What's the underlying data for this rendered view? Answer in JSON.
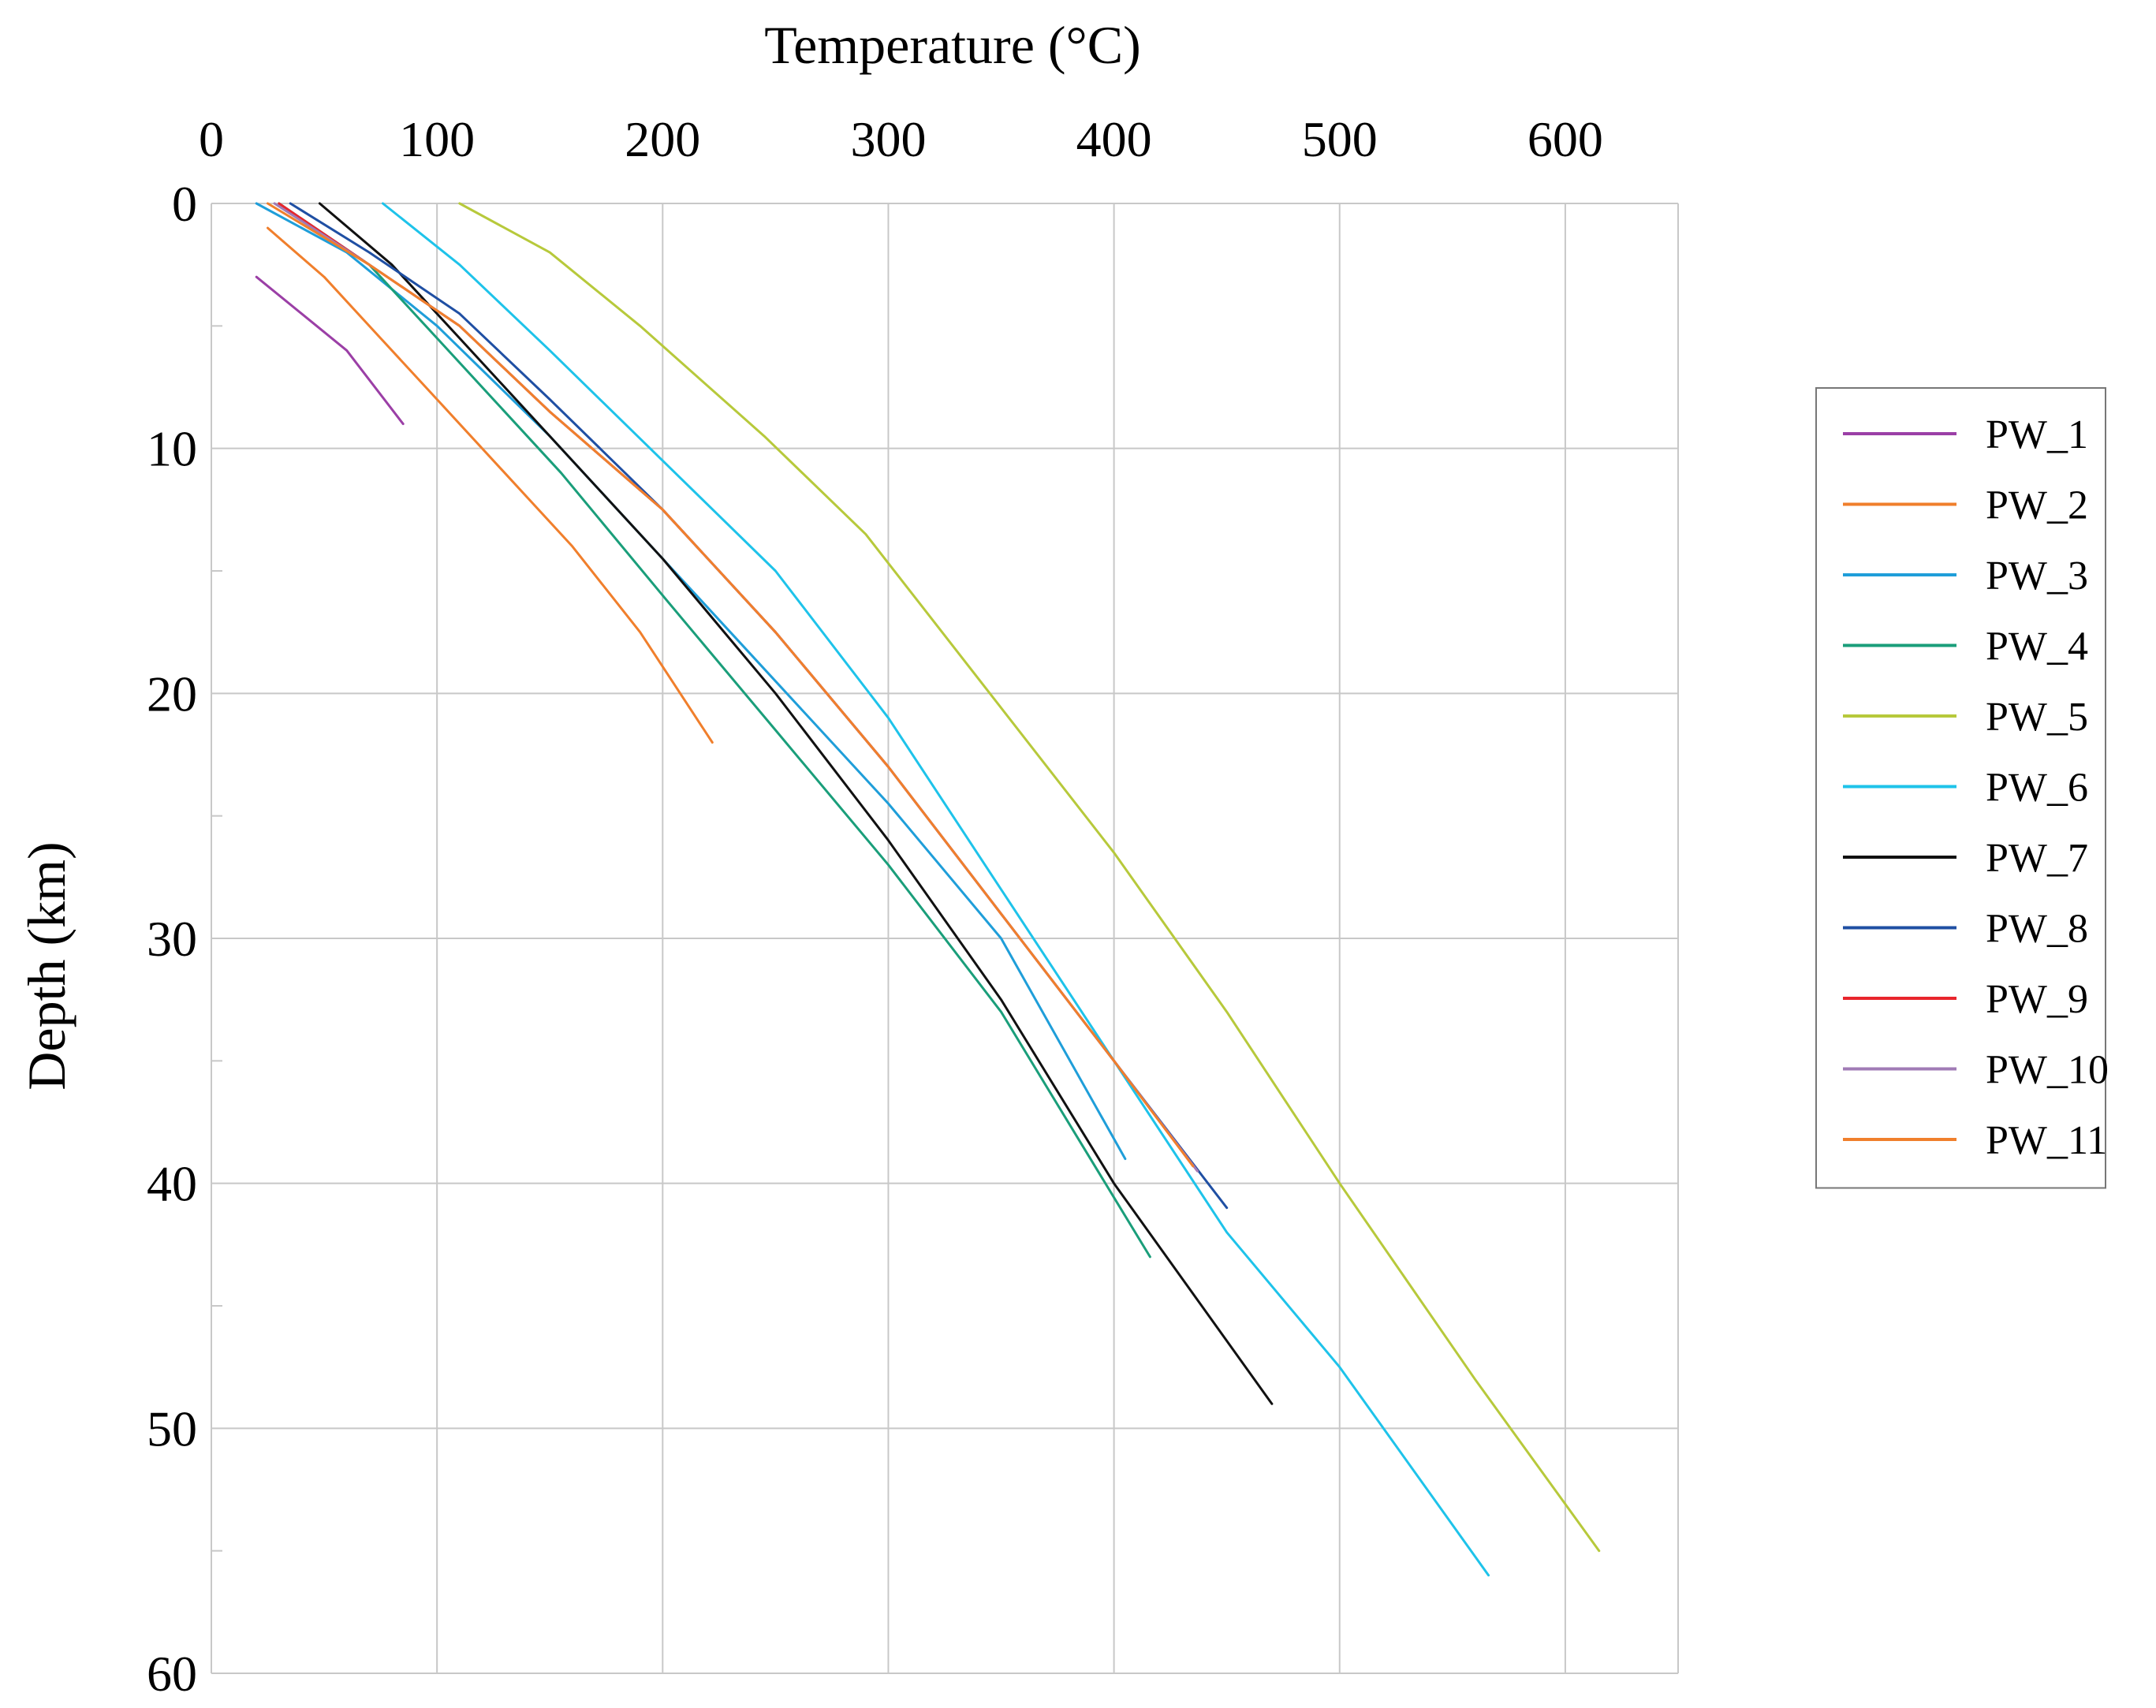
{
  "chart_data": {
    "type": "line",
    "title": "",
    "xlabel": "Temperature (°C)",
    "ylabel": "Depth (km)",
    "xlim": [
      0,
      650
    ],
    "ylim": [
      60,
      0
    ],
    "x_axis_position": "top",
    "y_axis_inverted": true,
    "x_ticks": [
      0,
      100,
      200,
      300,
      400,
      500,
      600
    ],
    "x_tick_labels": [
      "0",
      "100",
      "200",
      "300",
      "400",
      "500",
      "600"
    ],
    "y_ticks": [
      0,
      10,
      20,
      30,
      40,
      50,
      60
    ],
    "y_tick_labels": [
      "0",
      "10",
      "20",
      "30",
      "40",
      "50",
      "60"
    ],
    "y_minor_ticks": [
      5,
      15,
      25,
      35,
      45,
      55
    ],
    "grid": true,
    "legend_position": "right",
    "series": [
      {
        "name": "PW_1",
        "color": "#9b3fa6",
        "points": [
          [
            20,
            3
          ],
          [
            40,
            4.5
          ],
          [
            60,
            6
          ],
          [
            85,
            9
          ]
        ]
      },
      {
        "name": "PW_2",
        "color": "#f07f2c",
        "points": [
          [
            25,
            1
          ],
          [
            50,
            3
          ],
          [
            75,
            5.5
          ],
          [
            100,
            8
          ],
          [
            130,
            11
          ],
          [
            160,
            14
          ],
          [
            190,
            17.5
          ],
          [
            222,
            22
          ]
        ]
      },
      {
        "name": "PW_3",
        "color": "#1f9ed9",
        "points": [
          [
            20,
            0
          ],
          [
            60,
            2
          ],
          [
            100,
            5
          ],
          [
            150,
            9.5
          ],
          [
            200,
            14.5
          ],
          [
            250,
            19.5
          ],
          [
            300,
            24.5
          ],
          [
            350,
            30
          ],
          [
            405,
            39
          ]
        ]
      },
      {
        "name": "PW_4",
        "color": "#1a9e7a",
        "points": [
          [
            30,
            0
          ],
          [
            70,
            2.5
          ],
          [
            100,
            5.5
          ],
          [
            155,
            11
          ],
          [
            200,
            16
          ],
          [
            250,
            21.5
          ],
          [
            300,
            27
          ],
          [
            350,
            33
          ],
          [
            416,
            43
          ]
        ]
      },
      {
        "name": "PW_5",
        "color": "#b7c93b",
        "points": [
          [
            110,
            0
          ],
          [
            150,
            2
          ],
          [
            190,
            5
          ],
          [
            245,
            9.5
          ],
          [
            290,
            13.5
          ],
          [
            345,
            20
          ],
          [
            400,
            26.5
          ],
          [
            450,
            33
          ],
          [
            500,
            40
          ],
          [
            560,
            48
          ],
          [
            615,
            55
          ]
        ]
      },
      {
        "name": "PW_6",
        "color": "#1ec3ea",
        "points": [
          [
            76,
            0
          ],
          [
            110,
            2.5
          ],
          [
            150,
            6
          ],
          [
            200,
            10.5
          ],
          [
            250,
            15
          ],
          [
            300,
            21
          ],
          [
            350,
            28
          ],
          [
            400,
            35
          ],
          [
            450,
            42
          ],
          [
            500,
            47.5
          ],
          [
            566,
            56
          ]
        ]
      },
      {
        "name": "PW_7",
        "color": "#111111",
        "points": [
          [
            48,
            0
          ],
          [
            80,
            2.5
          ],
          [
            110,
            5.5
          ],
          [
            150,
            9.5
          ],
          [
            200,
            14.5
          ],
          [
            250,
            20
          ],
          [
            300,
            26
          ],
          [
            350,
            32.5
          ],
          [
            400,
            40
          ],
          [
            470,
            49
          ]
        ]
      },
      {
        "name": "PW_8",
        "color": "#1f4fa3",
        "points": [
          [
            35,
            0
          ],
          [
            70,
            2
          ],
          [
            110,
            4.5
          ],
          [
            150,
            8
          ],
          [
            200,
            12.5
          ],
          [
            250,
            17.5
          ],
          [
            300,
            23
          ],
          [
            350,
            29
          ],
          [
            400,
            35
          ],
          [
            450,
            41
          ]
        ]
      },
      {
        "name": "PW_9",
        "color": "#e8252c",
        "points": [
          [
            30,
            0
          ],
          [
            70,
            2.5
          ],
          [
            110,
            5
          ],
          [
            150,
            8.5
          ],
          [
            200,
            12.5
          ],
          [
            250,
            17.5
          ],
          [
            300,
            23
          ],
          [
            350,
            29
          ],
          [
            400,
            35
          ],
          [
            437,
            39.5
          ]
        ]
      },
      {
        "name": "PW_10",
        "color": "#a07bb6",
        "points": [
          [
            28,
            0
          ],
          [
            70,
            2.5
          ],
          [
            110,
            5
          ],
          [
            150,
            8.5
          ],
          [
            200,
            12.5
          ],
          [
            250,
            17.5
          ],
          [
            300,
            23
          ],
          [
            350,
            29
          ],
          [
            400,
            35
          ],
          [
            437,
            39.5
          ]
        ]
      },
      {
        "name": "PW_11",
        "color": "#f07f2c",
        "points": [
          [
            25,
            0
          ],
          [
            70,
            2.5
          ],
          [
            110,
            5
          ],
          [
            150,
            8.5
          ],
          [
            200,
            12.5
          ],
          [
            250,
            17.5
          ],
          [
            300,
            23
          ],
          [
            350,
            29
          ],
          [
            400,
            35
          ],
          [
            435,
            39.3
          ]
        ]
      }
    ]
  }
}
